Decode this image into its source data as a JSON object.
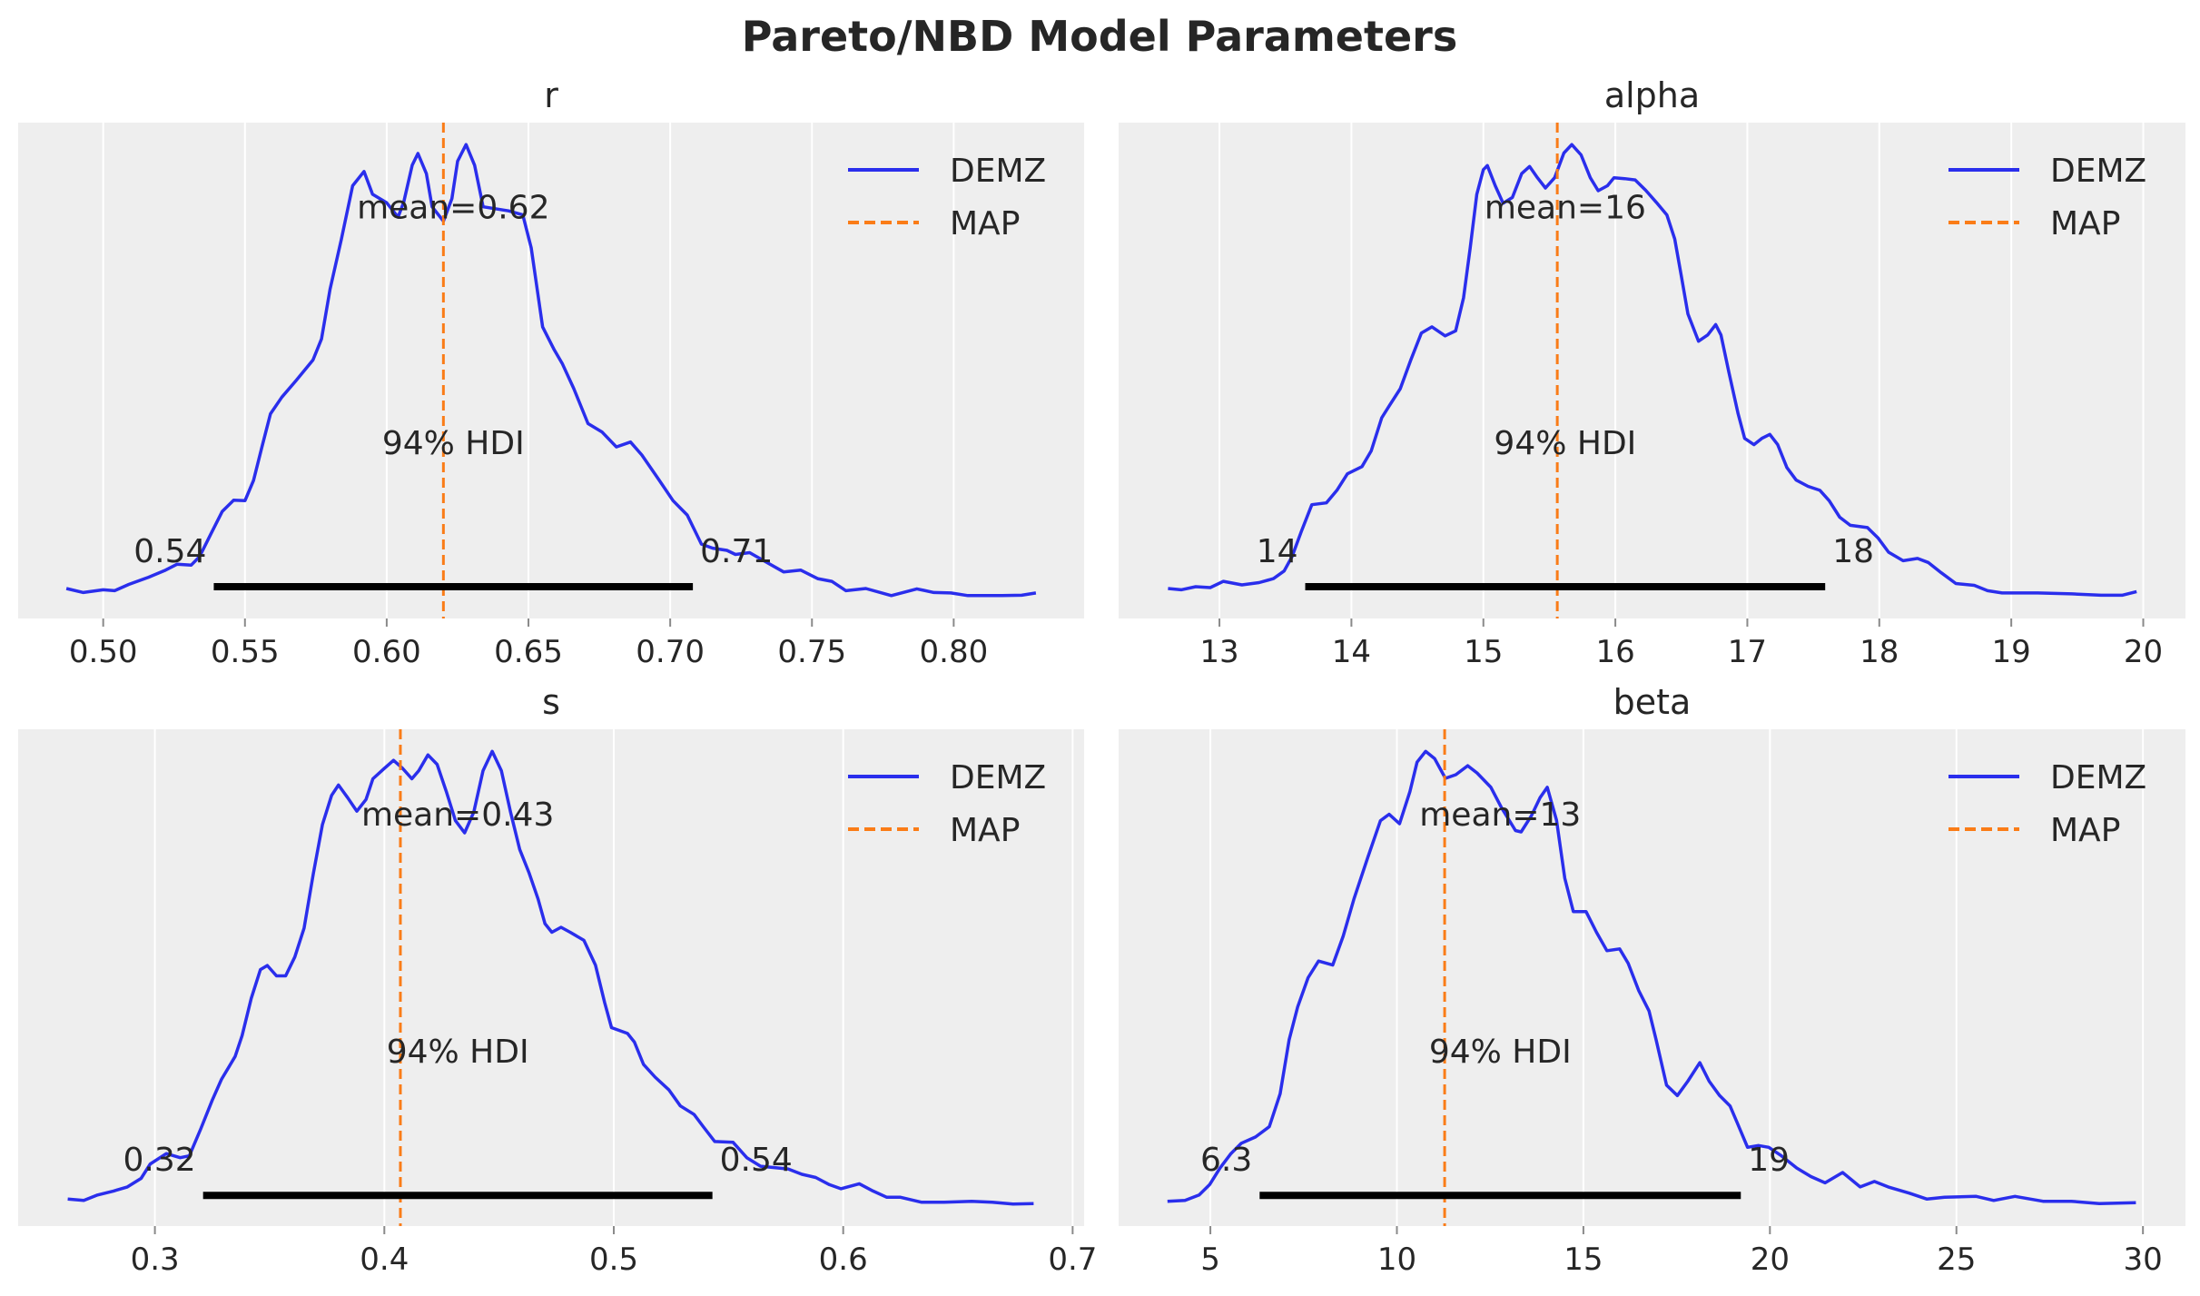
{
  "title": "Pareto/NBD Model Parameters",
  "colors": {
    "background": "#eeeeee",
    "grid": "#ffffff",
    "density": "#2a2eec",
    "map": "#fa7c17",
    "hdi": "#000000",
    "text": "#262626"
  },
  "chart_data": [
    {
      "type": "line",
      "title": "r",
      "xlim": [
        0.47,
        0.846
      ],
      "ylim": [
        -0.058,
        1.049
      ],
      "grid": true,
      "legend": {
        "placement": "top-right",
        "entries": [
          "DEMZ",
          "MAP"
        ]
      },
      "xticks": [
        0.5,
        0.55,
        0.6,
        0.65,
        0.7,
        0.75,
        0.8
      ],
      "xtick_labels": [
        "0.50",
        "0.55",
        "0.60",
        "0.65",
        "0.70",
        "0.75",
        "0.80"
      ],
      "series": [
        {
          "name": "DEMZ",
          "x": [
            0.487,
            0.493,
            0.5,
            0.504,
            0.509,
            0.516,
            0.522,
            0.526,
            0.531,
            0.534,
            0.538,
            0.542,
            0.546,
            0.55,
            0.553,
            0.556,
            0.559,
            0.563,
            0.568,
            0.574,
            0.577,
            0.58,
            0.584,
            0.588,
            0.592,
            0.595,
            0.6,
            0.604,
            0.606,
            0.609,
            0.611,
            0.614,
            0.616,
            0.62,
            0.623,
            0.625,
            0.628,
            0.631,
            0.634,
            0.638,
            0.643,
            0.648,
            0.651,
            0.655,
            0.659,
            0.662,
            0.666,
            0.671,
            0.676,
            0.681,
            0.686,
            0.69,
            0.696,
            0.701,
            0.706,
            0.711,
            0.715,
            0.72,
            0.723,
            0.728,
            0.733,
            0.74,
            0.746,
            0.752,
            0.757,
            0.762,
            0.769,
            0.778,
            0.787,
            0.793,
            0.799,
            0.805,
            0.817,
            0.824,
            0.829
          ],
          "y": [
            0.009,
            0.0,
            0.006,
            0.004,
            0.018,
            0.034,
            0.05,
            0.063,
            0.061,
            0.08,
            0.131,
            0.181,
            0.206,
            0.205,
            0.25,
            0.325,
            0.399,
            0.436,
            0.473,
            0.519,
            0.566,
            0.677,
            0.788,
            0.908,
            0.94,
            0.889,
            0.87,
            0.838,
            0.871,
            0.954,
            0.98,
            0.935,
            0.861,
            0.829,
            0.879,
            0.963,
            1.0,
            0.954,
            0.861,
            0.857,
            0.852,
            0.843,
            0.769,
            0.593,
            0.543,
            0.51,
            0.455,
            0.377,
            0.358,
            0.325,
            0.336,
            0.307,
            0.252,
            0.205,
            0.173,
            0.108,
            0.099,
            0.094,
            0.085,
            0.089,
            0.071,
            0.046,
            0.05,
            0.031,
            0.025,
            0.004,
            0.009,
            -0.007,
            0.008,
            0.0,
            -0.001,
            -0.007,
            -0.007,
            -0.006,
            -0.001
          ]
        }
      ],
      "map": 0.62,
      "hdi": [
        0.539,
        0.708
      ],
      "hdi_label": "94% HDI",
      "hdi_low_label": "0.54",
      "hdi_high_label": "0.71",
      "mean_label": "mean=0.62"
    },
    {
      "type": "line",
      "title": "alpha",
      "xlim": [
        12.236,
        20.32
      ],
      "ylim": [
        -0.058,
        1.049
      ],
      "grid": true,
      "legend": {
        "placement": "top-right",
        "entries": [
          "DEMZ",
          "MAP"
        ]
      },
      "xticks": [
        13,
        14,
        15,
        16,
        17,
        18,
        19,
        20
      ],
      "xtick_labels": [
        "13",
        "14",
        "15",
        "16",
        "17",
        "18",
        "19",
        "20"
      ],
      "series": [
        {
          "name": "DEMZ",
          "x": [
            12.61,
            12.71,
            12.82,
            12.93,
            13.03,
            13.17,
            13.3,
            13.41,
            13.49,
            13.55,
            13.62,
            13.7,
            13.81,
            13.89,
            13.97,
            14.08,
            14.15,
            14.23,
            14.29,
            14.37,
            14.45,
            14.53,
            14.61,
            14.71,
            14.79,
            14.85,
            14.9,
            14.95,
            15.0,
            15.03,
            15.09,
            15.15,
            15.22,
            15.29,
            15.35,
            15.41,
            15.47,
            15.54,
            15.61,
            15.67,
            15.74,
            15.81,
            15.87,
            15.94,
            15.99,
            16.07,
            16.15,
            16.23,
            16.31,
            16.39,
            16.45,
            16.5,
            16.55,
            16.63,
            16.7,
            16.76,
            16.8,
            16.86,
            16.93,
            16.98,
            17.05,
            17.11,
            17.17,
            17.23,
            17.3,
            17.37,
            17.46,
            17.55,
            17.62,
            17.7,
            17.78,
            17.91,
            17.99,
            18.07,
            18.18,
            18.29,
            18.37,
            18.47,
            18.58,
            18.72,
            18.82,
            18.93,
            19.2,
            19.46,
            19.68,
            19.84,
            19.95
          ],
          "y": [
            0.009,
            0.006,
            0.013,
            0.011,
            0.025,
            0.017,
            0.022,
            0.031,
            0.048,
            0.08,
            0.136,
            0.196,
            0.2,
            0.228,
            0.265,
            0.281,
            0.316,
            0.39,
            0.418,
            0.455,
            0.519,
            0.579,
            0.593,
            0.573,
            0.584,
            0.658,
            0.769,
            0.889,
            0.944,
            0.953,
            0.908,
            0.869,
            0.882,
            0.935,
            0.951,
            0.926,
            0.903,
            0.926,
            0.981,
            1.0,
            0.977,
            0.926,
            0.897,
            0.908,
            0.926,
            0.924,
            0.921,
            0.898,
            0.871,
            0.843,
            0.789,
            0.706,
            0.622,
            0.561,
            0.575,
            0.598,
            0.575,
            0.492,
            0.399,
            0.344,
            0.33,
            0.344,
            0.353,
            0.33,
            0.279,
            0.251,
            0.237,
            0.228,
            0.205,
            0.168,
            0.15,
            0.145,
            0.122,
            0.09,
            0.071,
            0.076,
            0.067,
            0.044,
            0.02,
            0.016,
            0.004,
            -0.001,
            -0.001,
            -0.003,
            -0.006,
            -0.006,
            0.002
          ]
        }
      ],
      "map": 15.56,
      "hdi": [
        13.65,
        17.59
      ],
      "hdi_label": "94% HDI",
      "hdi_low_label": "14",
      "hdi_high_label": "18",
      "mean_label": "mean=16"
    },
    {
      "type": "line",
      "title": "s",
      "xlim": [
        0.2404,
        0.705
      ],
      "ylim": [
        -0.055,
        1.049
      ],
      "grid": true,
      "legend": {
        "placement": "top-right",
        "entries": [
          "DEMZ",
          "MAP"
        ]
      },
      "xticks": [
        0.3,
        0.4,
        0.5,
        0.6,
        0.7
      ],
      "xtick_labels": [
        "0.3",
        "0.4",
        "0.5",
        "0.6",
        "0.7"
      ],
      "series": [
        {
          "name": "DEMZ",
          "x": [
            0.262,
            0.269,
            0.275,
            0.282,
            0.288,
            0.294,
            0.298,
            0.305,
            0.311,
            0.315,
            0.32,
            0.325,
            0.329,
            0.335,
            0.338,
            0.342,
            0.346,
            0.349,
            0.353,
            0.357,
            0.361,
            0.365,
            0.369,
            0.373,
            0.377,
            0.38,
            0.384,
            0.388,
            0.392,
            0.395,
            0.4,
            0.404,
            0.408,
            0.412,
            0.415,
            0.419,
            0.423,
            0.427,
            0.431,
            0.435,
            0.439,
            0.443,
            0.447,
            0.451,
            0.455,
            0.459,
            0.463,
            0.467,
            0.47,
            0.473,
            0.477,
            0.481,
            0.487,
            0.492,
            0.496,
            0.499,
            0.506,
            0.509,
            0.513,
            0.518,
            0.524,
            0.529,
            0.535,
            0.539,
            0.544,
            0.552,
            0.558,
            0.564,
            0.57,
            0.576,
            0.582,
            0.588,
            0.594,
            0.599,
            0.607,
            0.613,
            0.619,
            0.625,
            0.634,
            0.644,
            0.656,
            0.665,
            0.674,
            0.683
          ],
          "y": [
            0.005,
            0.002,
            0.014,
            0.023,
            0.032,
            0.051,
            0.083,
            0.106,
            0.097,
            0.101,
            0.161,
            0.225,
            0.271,
            0.322,
            0.368,
            0.451,
            0.515,
            0.524,
            0.501,
            0.501,
            0.543,
            0.607,
            0.727,
            0.837,
            0.902,
            0.925,
            0.897,
            0.867,
            0.893,
            0.939,
            0.962,
            0.98,
            0.962,
            0.939,
            0.957,
            0.992,
            0.971,
            0.911,
            0.846,
            0.819,
            0.865,
            0.957,
            1.0,
            0.957,
            0.865,
            0.782,
            0.731,
            0.672,
            0.617,
            0.598,
            0.609,
            0.598,
            0.58,
            0.525,
            0.442,
            0.386,
            0.373,
            0.354,
            0.304,
            0.276,
            0.248,
            0.212,
            0.193,
            0.166,
            0.133,
            0.131,
            0.097,
            0.078,
            0.075,
            0.072,
            0.06,
            0.053,
            0.037,
            0.028,
            0.039,
            0.023,
            0.009,
            0.009,
            -0.002,
            -0.002,
            0.0,
            -0.002,
            -0.006,
            -0.005
          ]
        }
      ],
      "map": 0.407,
      "hdi": [
        0.321,
        0.543
      ],
      "hdi_label": "94% HDI",
      "hdi_low_label": "0.32",
      "hdi_high_label": "0.54",
      "mean_label": "mean=0.43"
    },
    {
      "type": "line",
      "title": "beta",
      "xlim": [
        2.54,
        31.14
      ],
      "ylim": [
        -0.055,
        1.049
      ],
      "grid": true,
      "legend": {
        "placement": "top-right",
        "entries": [
          "DEMZ",
          "MAP"
        ]
      },
      "xticks": [
        5,
        10,
        15,
        20,
        25,
        30
      ],
      "xtick_labels": [
        "5",
        "10",
        "15",
        "20",
        "25",
        "30"
      ],
      "series": [
        {
          "name": "DEMZ",
          "x": [
            3.85,
            4.32,
            4.7,
            4.98,
            5.26,
            5.55,
            5.83,
            6.21,
            6.58,
            6.87,
            7.11,
            7.34,
            7.62,
            7.9,
            8.28,
            8.56,
            8.85,
            9.22,
            9.56,
            9.79,
            10.07,
            10.35,
            10.54,
            10.77,
            11.01,
            11.3,
            11.58,
            11.9,
            12.15,
            12.52,
            12.81,
            13.18,
            13.33,
            13.6,
            13.84,
            14.03,
            14.28,
            14.5,
            14.73,
            15.07,
            15.35,
            15.63,
            15.97,
            16.2,
            16.48,
            16.76,
            16.95,
            17.23,
            17.52,
            17.8,
            18.12,
            18.37,
            18.65,
            18.93,
            19.12,
            19.4,
            19.69,
            19.97,
            20.31,
            20.72,
            21.1,
            21.48,
            21.95,
            22.42,
            22.8,
            23.17,
            23.74,
            24.21,
            24.68,
            25.53,
            26.0,
            26.57,
            27.32,
            28.08,
            28.83,
            29.81
          ],
          "y": [
            0,
            0.002,
            0.014,
            0.037,
            0.074,
            0.106,
            0.129,
            0.143,
            0.166,
            0.239,
            0.359,
            0.432,
            0.497,
            0.534,
            0.525,
            0.589,
            0.672,
            0.764,
            0.846,
            0.86,
            0.839,
            0.911,
            0.976,
            1.0,
            0.984,
            0.94,
            0.948,
            0.968,
            0.952,
            0.92,
            0.874,
            0.824,
            0.821,
            0.856,
            0.897,
            0.92,
            0.847,
            0.718,
            0.644,
            0.644,
            0.598,
            0.557,
            0.561,
            0.529,
            0.469,
            0.423,
            0.359,
            0.258,
            0.235,
            0.267,
            0.308,
            0.267,
            0.235,
            0.212,
            0.175,
            0.12,
            0.124,
            0.12,
            0.101,
            0.074,
            0.055,
            0.041,
            0.064,
            0.032,
            0.044,
            0.032,
            0.018,
            0.005,
            0.009,
            0.011,
            0.002,
            0.011,
            0,
            0,
            -0.005,
            -0.003
          ]
        }
      ],
      "map": 11.28,
      "hdi": [
        6.32,
        19.22
      ],
      "hdi_label": "94% HDI",
      "hdi_low_label": "6.3",
      "hdi_high_label": "19",
      "mean_label": "mean=13"
    }
  ]
}
